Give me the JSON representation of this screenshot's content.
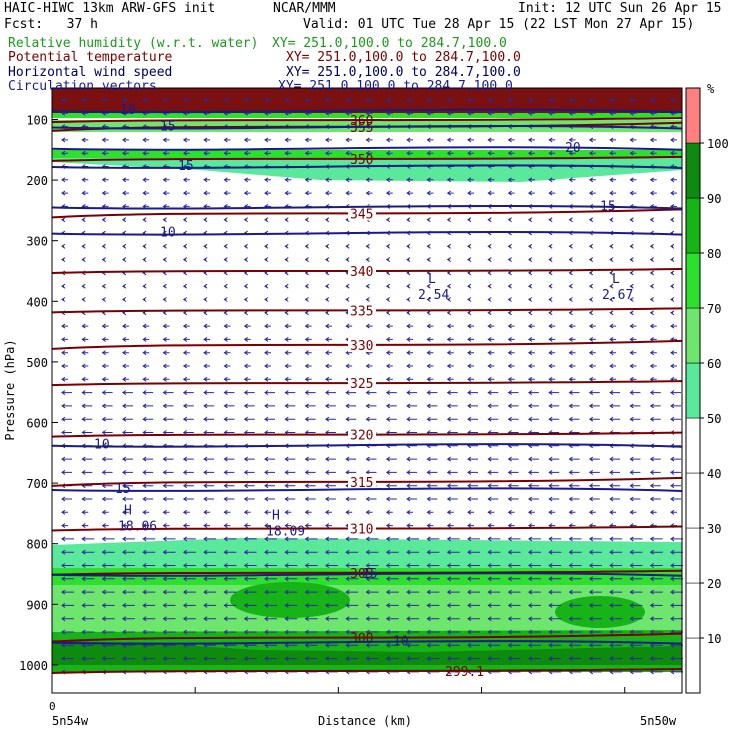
{
  "header": {
    "line1_left": "HAIC-HIWC 13km ARW-GFS init",
    "line1_mid": "NCAR/MMM",
    "line1_right": "Init: 12 UTC Sun 26 Apr 15",
    "fcst": "Fcst:   37 h",
    "valid": "Valid: 01 UTC Tue 28 Apr 15 (22 LST Mon 27 Apr 15)"
  },
  "legend": [
    {
      "name": "Relative humidity (w.r.t. water)",
      "xy": "XY= 251.0,100.0 to 284.7,100.0",
      "color": "#1a9a1a"
    },
    {
      "name": "Potential temperature",
      "xy": "XY= 251.0,100.0 to 284.7,100.0",
      "color": "#7a0000"
    },
    {
      "name": "Horizontal wind speed",
      "xy": "XY= 251.0,100.0 to 284.7,100.0",
      "color": "#000060"
    },
    {
      "name": "Circulation vectors",
      "xy": "XY= 251.0,100.0 to 284.7,100.0",
      "color": "#1a1a9a"
    }
  ],
  "colors": {
    "theta": "#7a0000",
    "wind": "#1a1a8a",
    "vector": "#2a2a9a",
    "rh_band_colors": [
      "#ffffff",
      "#ffffff",
      "#ffffff",
      "#ffffff",
      "#ffffff",
      "#5ae89a",
      "#6ee66e",
      "#2ee02e",
      "#16b416",
      "#0e8a0e",
      "#7a1010",
      "#ff8080"
    ]
  },
  "chart_data": {
    "type": "cross-section",
    "ylabel": "Pressure (hPa)",
    "xlabel": "Distance (km)",
    "x_start_label": "0",
    "x_left_label": "5n54w",
    "x_right_label": "5n50w",
    "y_ticks": [
      100,
      200,
      300,
      400,
      500,
      600,
      700,
      800,
      900,
      1000
    ],
    "ylim": [
      1050,
      70
    ],
    "colorbar": {
      "unit": "%",
      "levels": [
        10,
        20,
        30,
        40,
        50,
        60,
        70,
        80,
        90,
        100
      ],
      "colors": [
        "#ffffff",
        "#ffffff",
        "#ffffff",
        "#ffffff",
        "#ffffff",
        "#5ae89a",
        "#6ee66e",
        "#2ee02e",
        "#16b416",
        "#0e8a0e",
        "#ff8080"
      ]
    },
    "potential_temperature_contours": [
      {
        "label": "355",
        "p": 112
      },
      {
        "label": "360",
        "p": 101
      },
      {
        "label": "350",
        "p": 165
      },
      {
        "label": "345",
        "p": 255
      },
      {
        "label": "340",
        "p": 350
      },
      {
        "label": "335",
        "p": 415
      },
      {
        "label": "330",
        "p": 472
      },
      {
        "label": "325",
        "p": 535
      },
      {
        "label": "320",
        "p": 620
      },
      {
        "label": "315",
        "p": 698
      },
      {
        "label": "310",
        "p": 775
      },
      {
        "label": "305",
        "p": 848
      },
      {
        "label": "300",
        "p": 955
      },
      {
        "label": "299.1",
        "p": 1010
      }
    ],
    "wind_speed_contours": [
      {
        "label": "10",
        "p": 83
      },
      {
        "label": "15",
        "p": 110
      },
      {
        "label": "20",
        "p": 145
      },
      {
        "label": "15",
        "p": 175
      },
      {
        "label": "15",
        "p": 242
      },
      {
        "label": "10",
        "p": 285
      },
      {
        "label": "10",
        "p": 635
      },
      {
        "label": "15",
        "p": 708
      },
      {
        "label": "15",
        "p": 848
      },
      {
        "label": "10",
        "p": 960
      }
    ],
    "wind_minima": [
      {
        "label": "L",
        "value": "2.54"
      },
      {
        "label": "L",
        "value": "2.67"
      }
    ],
    "wind_maxima": [
      {
        "label": "H",
        "value": "18.06"
      },
      {
        "label": "H",
        "value": "18.09"
      }
    ]
  }
}
